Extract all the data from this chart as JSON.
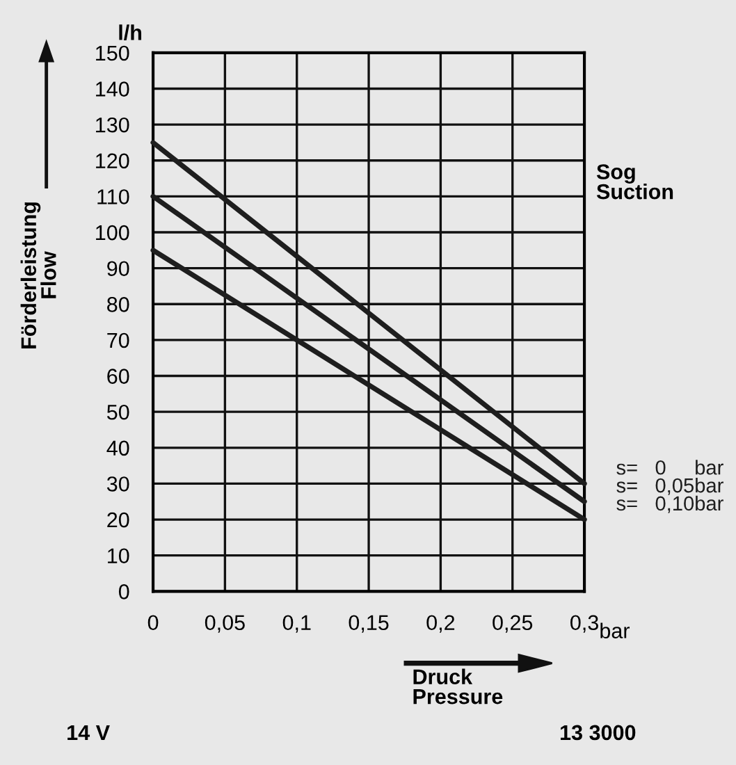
{
  "chart_data": {
    "type": "line",
    "ylabel": "Förderleistung\nFlow",
    "xlabel": "Druck\nPressure",
    "annotations": [
      "l/h",
      "bar",
      "Sog\nSuction",
      "14 V",
      "13 3000"
    ],
    "x": [
      0,
      0.3
    ],
    "series": [
      {
        "name": "s=   0     bar",
        "color": "#1e1e1e",
        "values": [
          125,
          30
        ]
      },
      {
        "name": "s=   0,05bar",
        "color": "#1e1e1e",
        "values": [
          110,
          25
        ]
      },
      {
        "name": "s=   0,10bar",
        "color": "#1e1e1e",
        "values": [
          95,
          20
        ]
      }
    ],
    "xlim": [
      0,
      0.3
    ],
    "ylim": [
      0,
      150
    ],
    "xticks": [
      0,
      {
        "value": 0.05,
        "label": "0,05"
      },
      {
        "value": 0.1,
        "label": "0,1"
      },
      {
        "value": 0.15,
        "label": "0,15"
      },
      {
        "value": 0.2,
        "label": "0,2"
      },
      {
        "value": 0.25,
        "label": "0,25"
      },
      {
        "value": 0.3,
        "label": "0,3"
      }
    ],
    "yticks": [
      0,
      10,
      20,
      30,
      40,
      50,
      60,
      70,
      80,
      90,
      100,
      110,
      120,
      130,
      140,
      150
    ],
    "grid": true,
    "legend": false,
    "marker": "none",
    "line_style": "solid"
  }
}
